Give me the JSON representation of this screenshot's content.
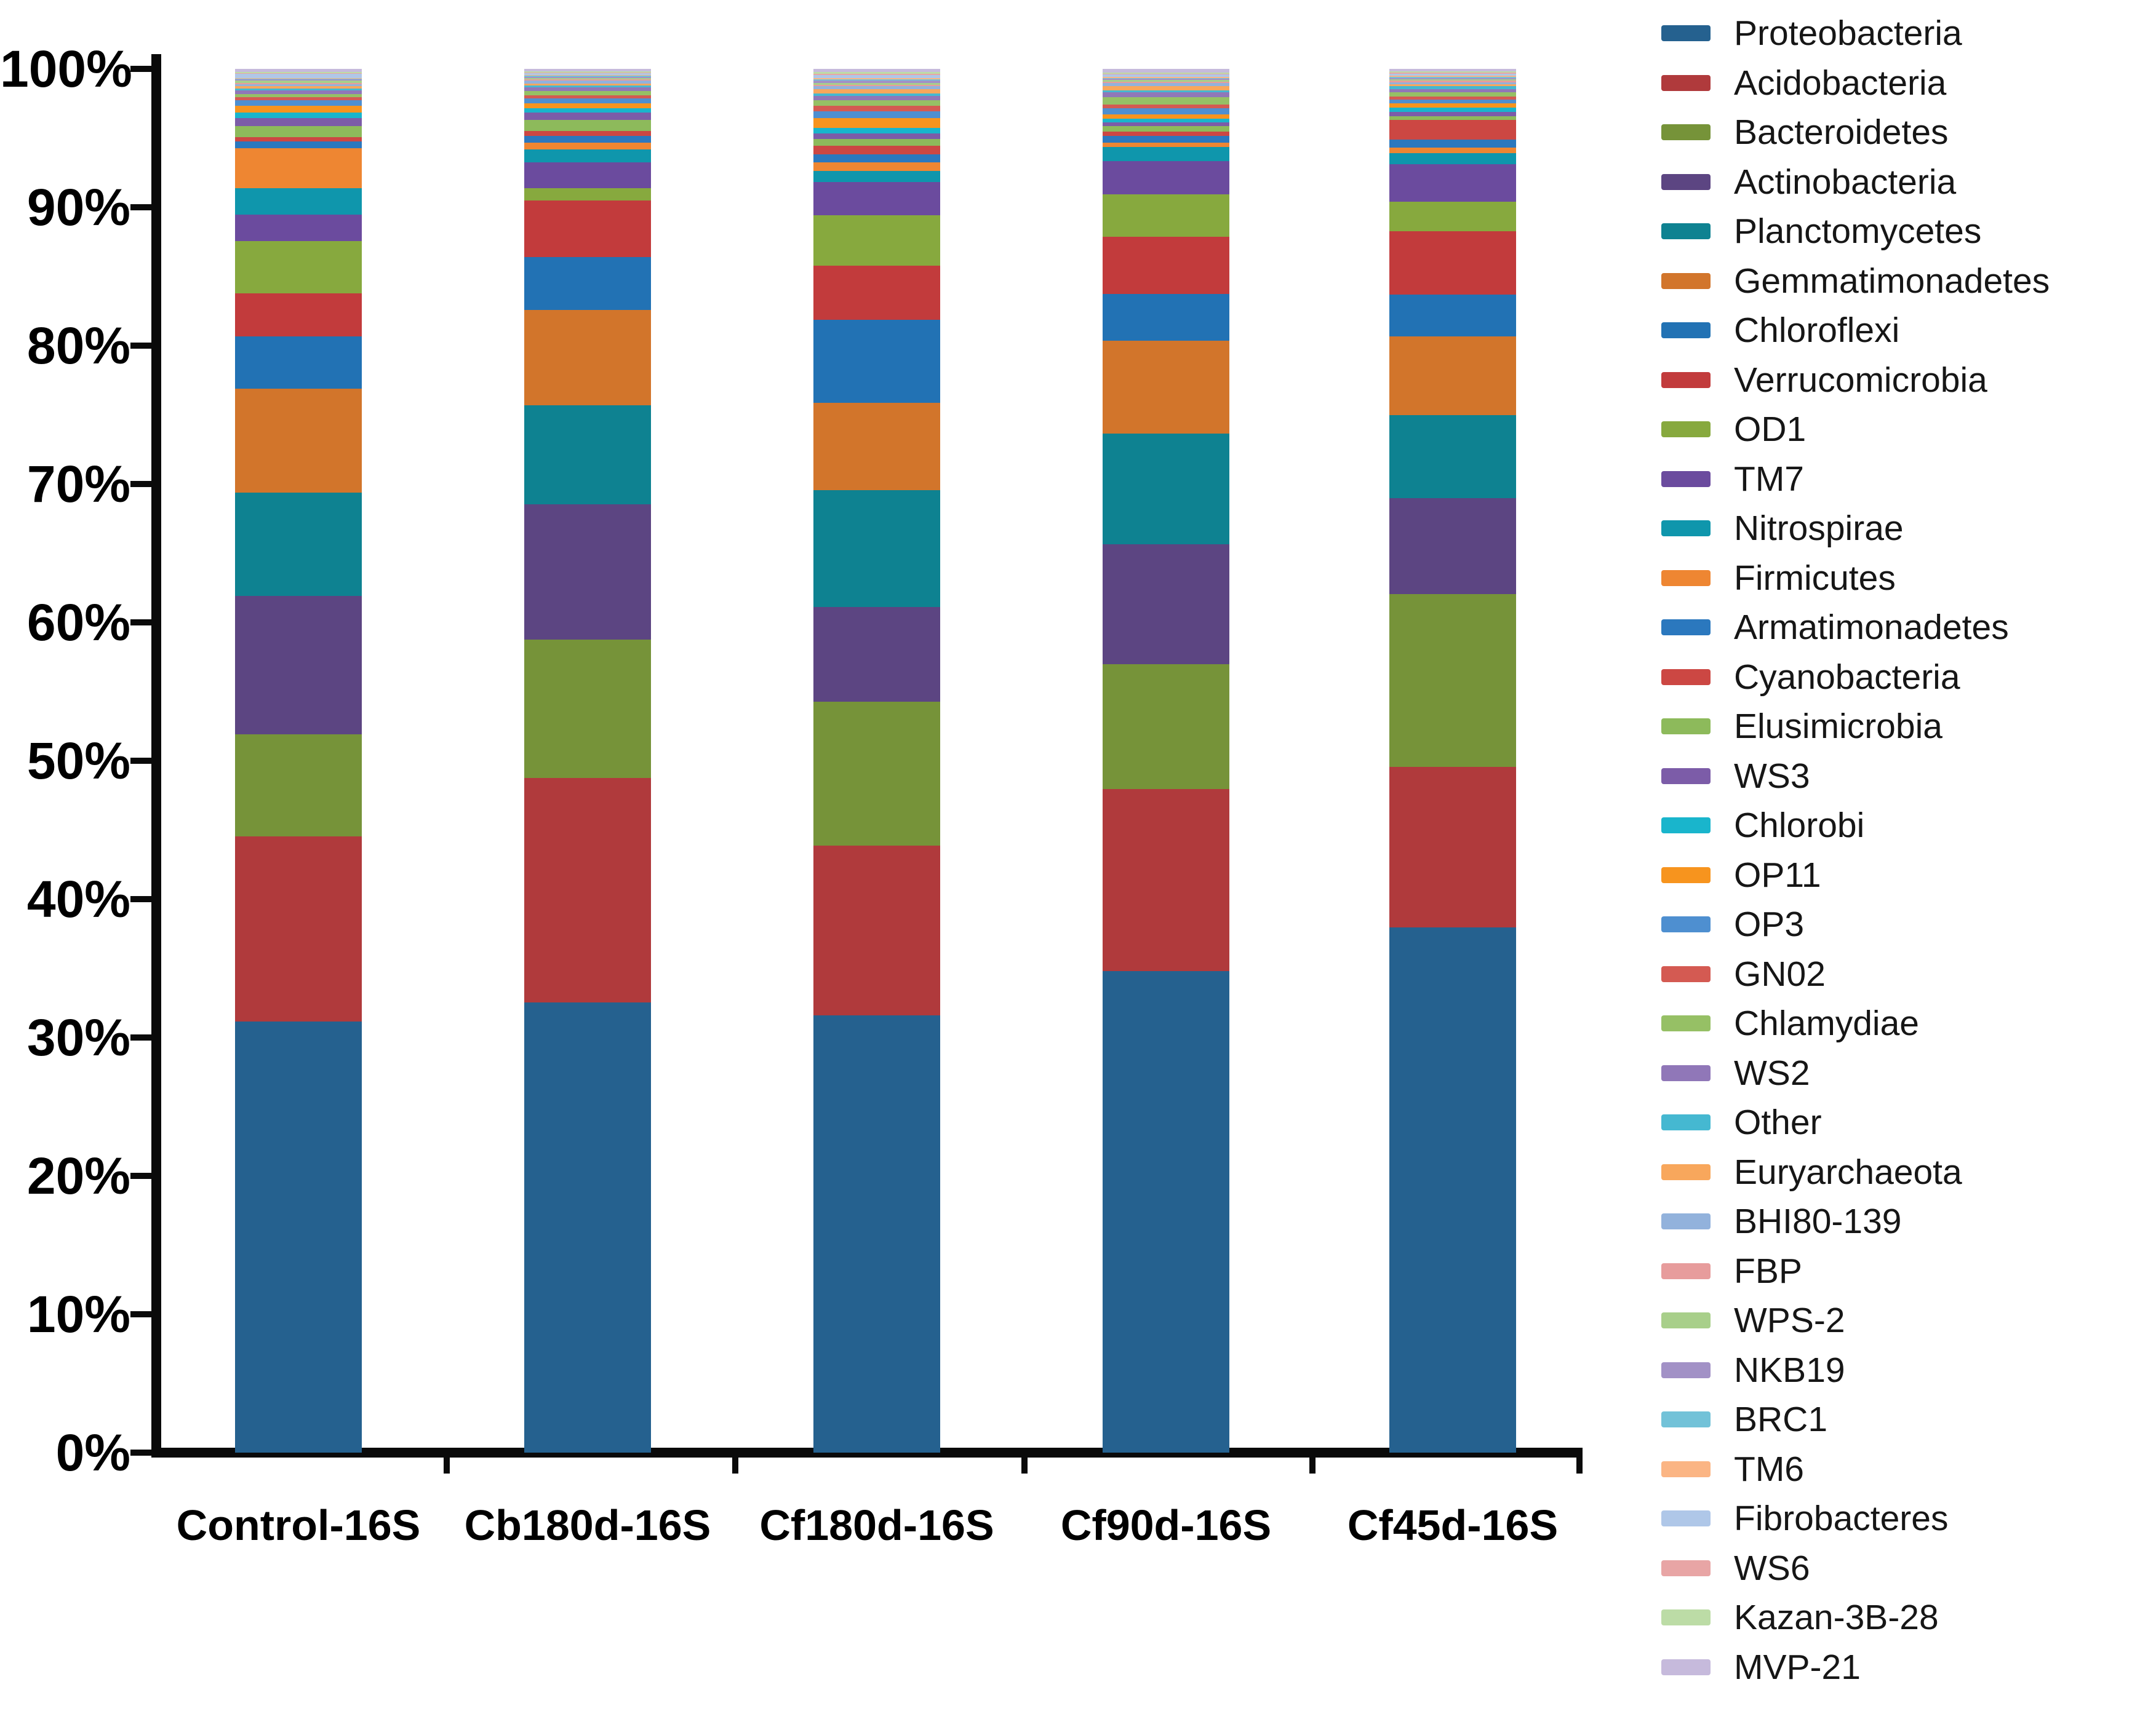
{
  "chart_data": {
    "type": "bar",
    "subtype": "stacked-100-percent",
    "title": "",
    "xlabel": "",
    "ylabel": "",
    "ylim": [
      0,
      100
    ],
    "grid": false,
    "legend_position": "right",
    "y_ticks": [
      {
        "pct": 0,
        "label": "0%"
      },
      {
        "pct": 10,
        "label": "10%"
      },
      {
        "pct": 20,
        "label": "20%"
      },
      {
        "pct": 30,
        "label": "30%"
      },
      {
        "pct": 40,
        "label": "40%"
      },
      {
        "pct": 50,
        "label": "50%"
      },
      {
        "pct": 60,
        "label": "60%"
      },
      {
        "pct": 70,
        "label": "70%"
      },
      {
        "pct": 80,
        "label": "80%"
      },
      {
        "pct": 90,
        "label": "90%"
      },
      {
        "pct": 100,
        "label": "100%"
      }
    ],
    "categories": [
      "Control-16S",
      "Cb180d-16S",
      "Cf180d-16S",
      "Cf90d-16S",
      "Cf45d-16S"
    ],
    "series": [
      {
        "name": "Proteobacteria",
        "color": "#25618F",
        "values": [
          31.2,
          32.6,
          31.5,
          34.8,
          37.9
        ]
      },
      {
        "name": "Acidobacteria",
        "color": "#B03A3C",
        "values": [
          13.4,
          16.3,
          12.2,
          13.2,
          11.6
        ]
      },
      {
        "name": "Bacteroidetes",
        "color": "#769339",
        "values": [
          7.4,
          10.0,
          10.4,
          9.0,
          12.5
        ]
      },
      {
        "name": "Actinobacteria",
        "color": "#5C4582",
        "values": [
          10.0,
          9.8,
          6.8,
          8.7,
          6.9
        ]
      },
      {
        "name": "Planctomycetes",
        "color": "#0E8291",
        "values": [
          7.5,
          7.2,
          8.4,
          8.0,
          6.0
        ]
      },
      {
        "name": "Gemmatimonadetes",
        "color": "#D2752B",
        "values": [
          7.5,
          6.9,
          6.3,
          6.7,
          5.7
        ]
      },
      {
        "name": "Chloroflexi",
        "color": "#2272B4",
        "values": [
          3.8,
          3.8,
          6.0,
          3.4,
          3.0
        ]
      },
      {
        "name": "Verrucomicrobia",
        "color": "#C23B3C",
        "values": [
          3.1,
          4.1,
          3.9,
          4.1,
          4.6
        ]
      },
      {
        "name": "OD1",
        "color": "#87A93E",
        "values": [
          3.8,
          0.9,
          3.6,
          3.1,
          2.1
        ]
      },
      {
        "name": "TM7",
        "color": "#6B4B9E",
        "values": [
          1.9,
          1.9,
          2.4,
          2.4,
          2.7
        ]
      },
      {
        "name": "Nitrospirae",
        "color": "#0F96AC",
        "values": [
          1.9,
          0.9,
          0.8,
          1.0,
          0.8
        ]
      },
      {
        "name": "Firmicutes",
        "color": "#EE8632",
        "values": [
          2.9,
          0.5,
          0.6,
          0.3,
          0.4
        ]
      },
      {
        "name": "Armatimonadetes",
        "color": "#2B78BE",
        "values": [
          0.5,
          0.5,
          0.6,
          0.5,
          0.6
        ]
      },
      {
        "name": "Cyanobacteria",
        "color": "#CC4743",
        "values": [
          0.3,
          0.35,
          0.6,
          0.3,
          1.4
        ]
      },
      {
        "name": "Elusimicrobia",
        "color": "#8DBA5B",
        "values": [
          0.8,
          0.8,
          0.5,
          0.4,
          0.3
        ]
      },
      {
        "name": "WS3",
        "color": "#7C5CA8",
        "values": [
          0.6,
          0.55,
          0.4,
          0.3,
          0.3
        ]
      },
      {
        "name": "Chlorobi",
        "color": "#19B5CC",
        "values": [
          0.4,
          0.3,
          0.4,
          0.25,
          0.3
        ]
      },
      {
        "name": "OP11",
        "color": "#F7941E",
        "values": [
          0.5,
          0.35,
          0.7,
          0.3,
          0.3
        ]
      },
      {
        "name": "OP3",
        "color": "#4E8FD0",
        "values": [
          0.4,
          0.35,
          0.5,
          0.45,
          0.3
        ]
      },
      {
        "name": "GN02",
        "color": "#D45A52",
        "values": [
          0.2,
          0.25,
          0.4,
          0.3,
          0.2
        ]
      },
      {
        "name": "Chlamydiae",
        "color": "#96C065",
        "values": [
          0.25,
          0.3,
          0.4,
          0.5,
          0.3
        ]
      },
      {
        "name": "WS2",
        "color": "#9077B8",
        "values": [
          0.25,
          0.25,
          0.3,
          0.35,
          0.25
        ]
      },
      {
        "name": "Other",
        "color": "#45B8D1",
        "values": [
          0.15,
          0.15,
          0.2,
          0.15,
          0.2
        ]
      },
      {
        "name": "Euryarchaeota",
        "color": "#F8A75C",
        "values": [
          0.15,
          0.15,
          0.3,
          0.3,
          0.15
        ]
      },
      {
        "name": "BHI80-139",
        "color": "#92B2DC",
        "values": [
          0.15,
          0.2,
          0.2,
          0.25,
          0.15
        ]
      },
      {
        "name": "FBP",
        "color": "#E79C9C",
        "values": [
          0.1,
          0.1,
          0.1,
          0.1,
          0.1
        ]
      },
      {
        "name": "WPS-2",
        "color": "#A8CF8A",
        "values": [
          0.15,
          0.1,
          0.15,
          0.1,
          0.1
        ]
      },
      {
        "name": "NKB19",
        "color": "#A291C6",
        "values": [
          0.1,
          0.1,
          0.15,
          0.1,
          0.1
        ]
      },
      {
        "name": "BRC1",
        "color": "#72C2D8",
        "values": [
          0.05,
          0.05,
          0.1,
          0.05,
          0.1
        ]
      },
      {
        "name": "TM6",
        "color": "#FBB584",
        "values": [
          0.05,
          0.05,
          0.1,
          0.1,
          0.05
        ]
      },
      {
        "name": "Fibrobacteres",
        "color": "#AFC7E8",
        "values": [
          0.3,
          0.15,
          0.2,
          0.15,
          0.15
        ]
      },
      {
        "name": "WS6",
        "color": "#E8A5A5",
        "values": [
          0.05,
          0.05,
          0.1,
          0.05,
          0.1
        ]
      },
      {
        "name": "Kazan-3B-28",
        "color": "#BCDCA6",
        "values": [
          0.1,
          0.1,
          0.15,
          0.1,
          0.1
        ]
      },
      {
        "name": "MVP-21",
        "color": "#C6BADC",
        "values": [
          0.2,
          0.15,
          0.2,
          0.25,
          0.15
        ]
      }
    ]
  }
}
